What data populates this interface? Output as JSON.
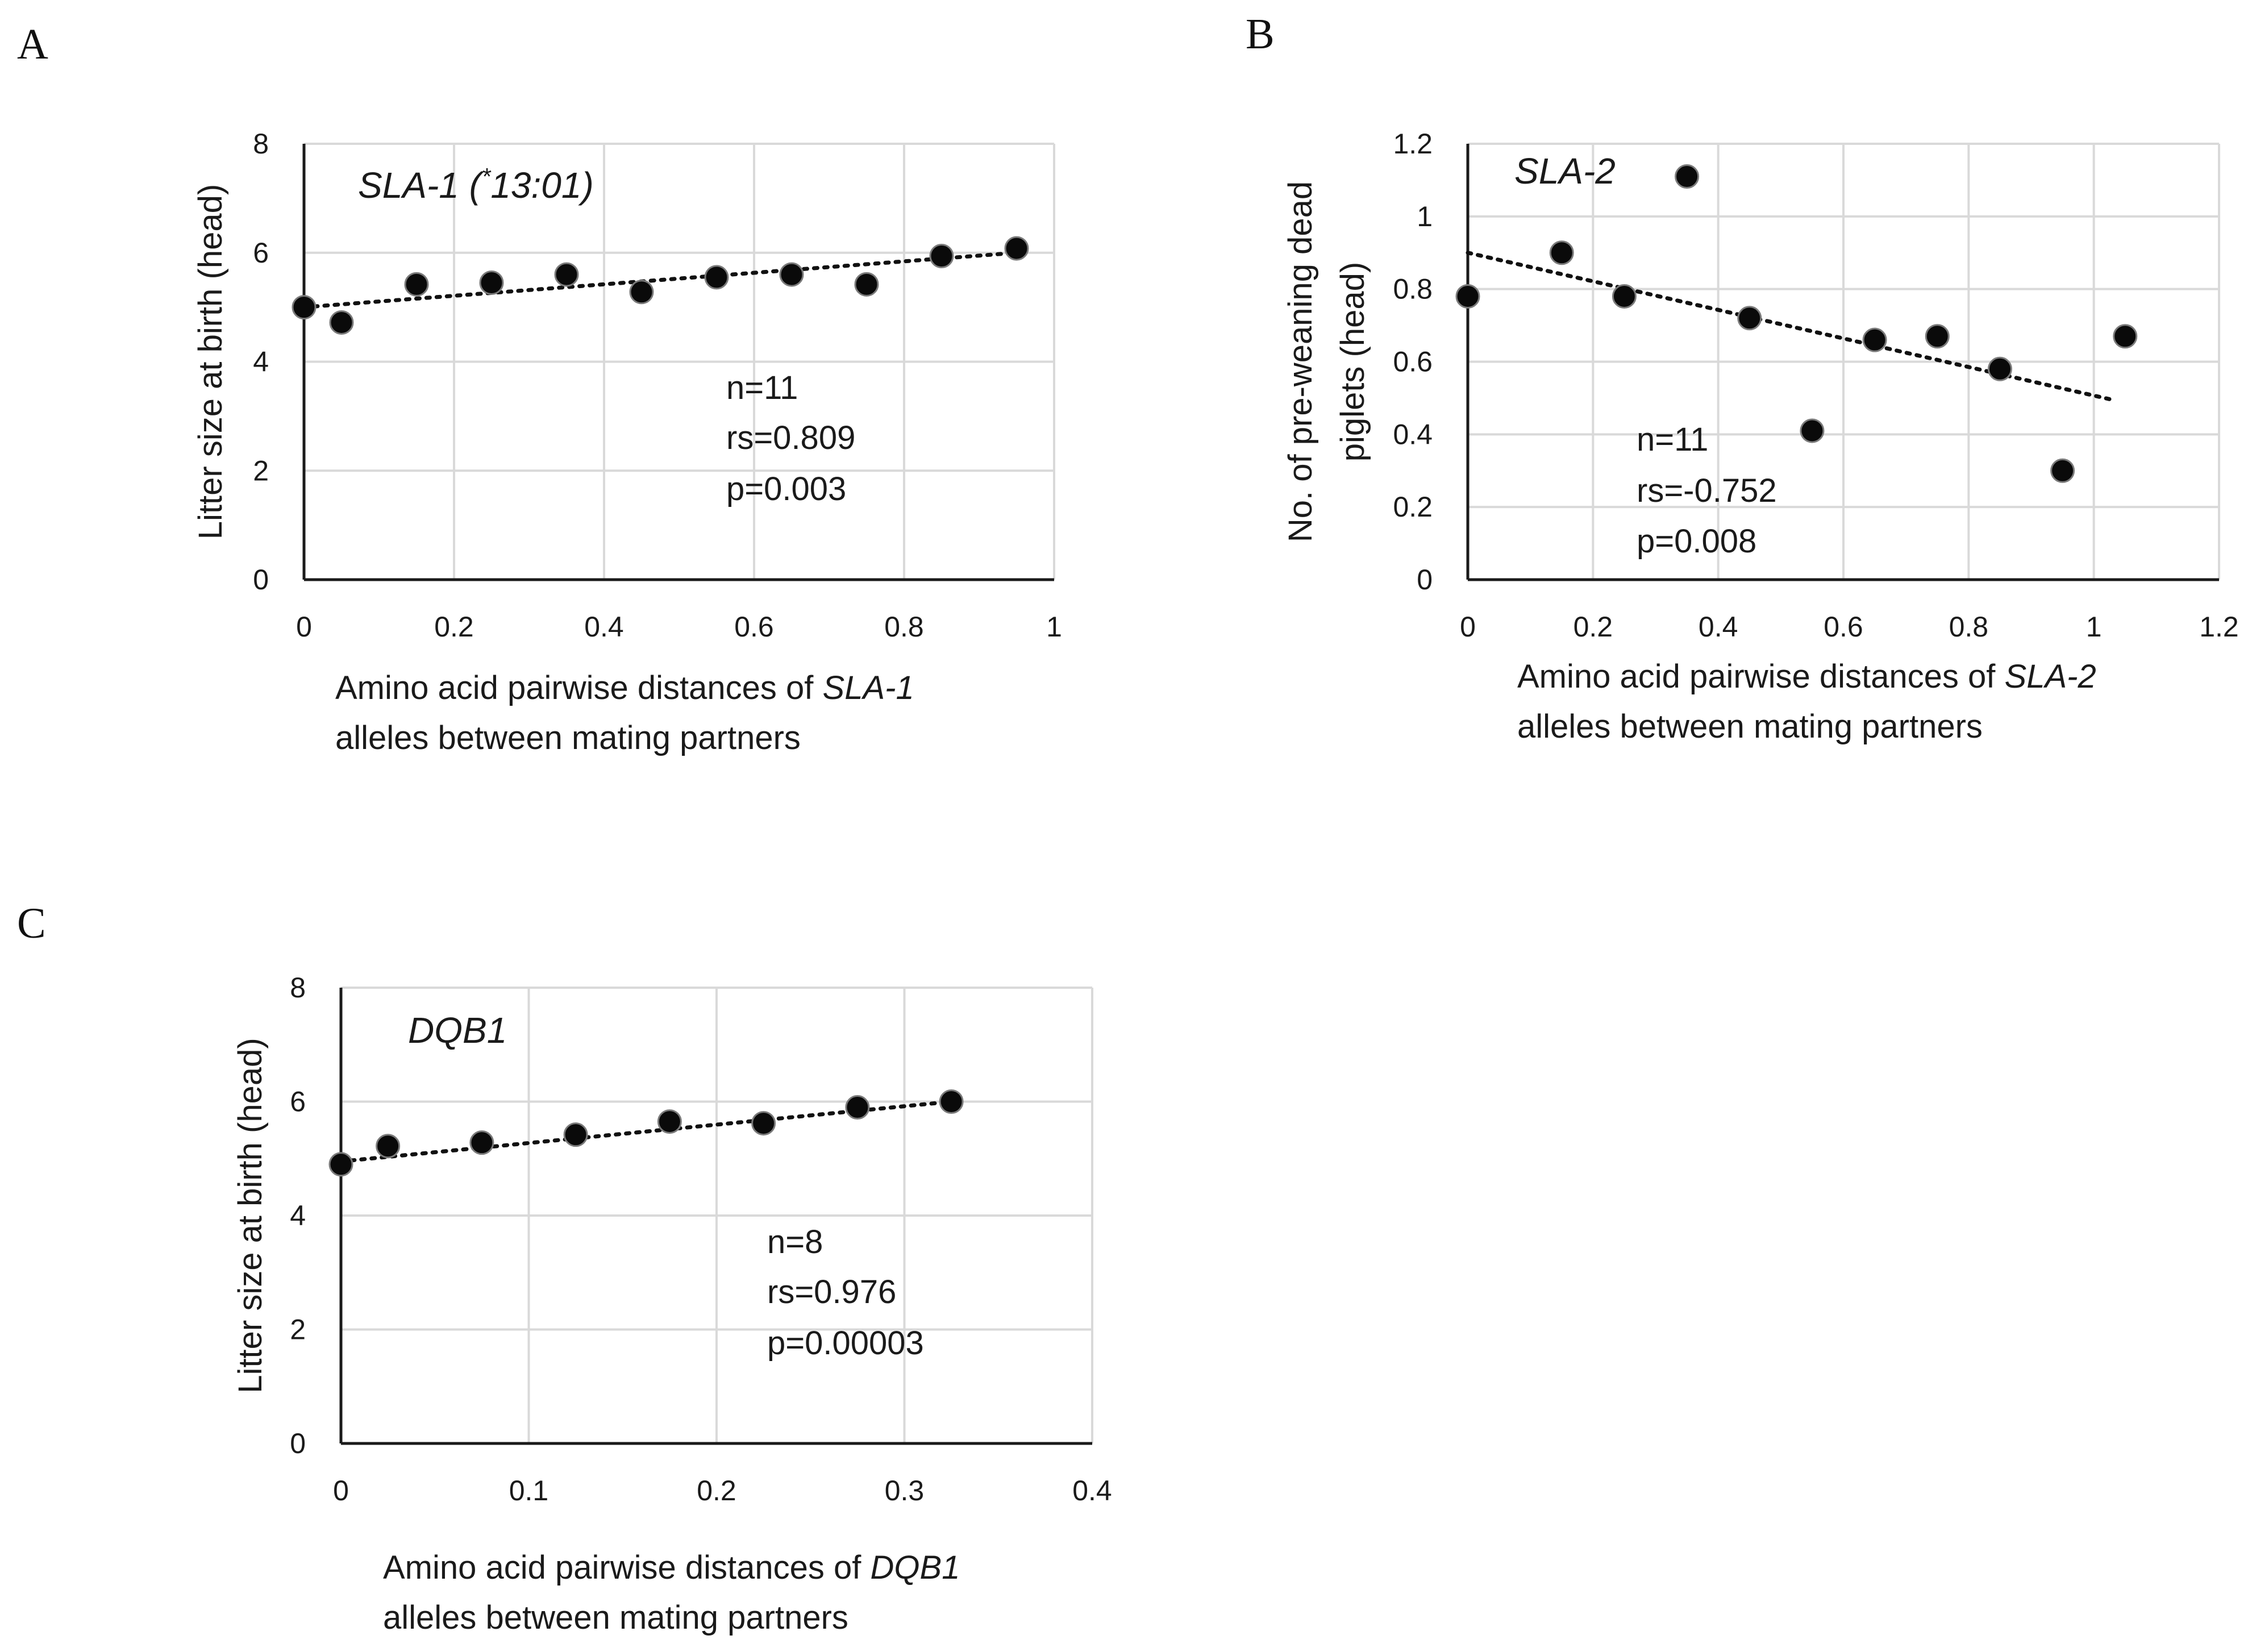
{
  "chart_data": [
    {
      "type": "scatter",
      "panel": "A",
      "title": "SLA-1 (*13:01)",
      "title_parts": [
        "SLA-1 (",
        "*",
        "13:01)"
      ],
      "xlabel_lines": [
        [
          "Amino acid pairwise distances of ",
          "SLA-1"
        ],
        [
          "alleles between mating partners"
        ]
      ],
      "ylabel_lines": [
        "Litter size at birth (head)"
      ],
      "xlim": [
        0,
        1
      ],
      "ylim": [
        0,
        8
      ],
      "xticks": [
        0,
        0.2,
        0.4,
        0.6,
        0.8,
        1
      ],
      "yticks": [
        0,
        2,
        4,
        6,
        8
      ],
      "x": [
        0,
        0.05,
        0.15,
        0.25,
        0.35,
        0.45,
        0.55,
        0.65,
        0.75,
        0.85,
        0.95
      ],
      "y": [
        5.0,
        4.72,
        5.42,
        5.45,
        5.6,
        5.28,
        5.55,
        5.6,
        5.42,
        5.94,
        6.08
      ],
      "trendline": {
        "x": [
          0,
          0.95
        ],
        "y": [
          5.0,
          6.0
        ],
        "style": "dotted"
      },
      "annotations": [
        "n=11",
        "rs=0.809",
        "p=0.003"
      ],
      "grid": true
    },
    {
      "type": "scatter",
      "panel": "B",
      "title": "SLA-2",
      "title_parts": [
        "SLA-2"
      ],
      "xlabel_lines": [
        [
          "Amino acid pairwise distances of ",
          "SLA-2"
        ],
        [
          "alleles between mating partners"
        ]
      ],
      "ylabel_lines": [
        "No. of pre-weaning dead",
        "piglets (head)"
      ],
      "xlim": [
        0,
        1.2
      ],
      "ylim": [
        0,
        1.2
      ],
      "xticks": [
        0,
        0.2,
        0.4,
        0.6,
        0.8,
        1,
        1.2
      ],
      "yticks": [
        0,
        0.2,
        0.4,
        0.6,
        0.8,
        1,
        1.2
      ],
      "x": [
        0,
        0.15,
        0.25,
        0.35,
        0.45,
        0.55,
        0.65,
        0.75,
        0.85,
        0.95,
        1.05
      ],
      "y": [
        0.78,
        0.9,
        0.78,
        1.11,
        0.72,
        0.41,
        0.66,
        0.67,
        0.58,
        0.3,
        0.67
      ],
      "trendline": {
        "x": [
          0,
          1.03
        ],
        "y": [
          0.9,
          0.495
        ],
        "style": "dotted"
      },
      "annotations": [
        "n=11",
        "rs=-0.752",
        "p=0.008"
      ],
      "grid": true
    },
    {
      "type": "scatter",
      "panel": "C",
      "title": "DQB1",
      "title_parts": [
        "DQB1"
      ],
      "xlabel_lines": [
        [
          "Amino acid pairwise distances of ",
          "DQB1"
        ],
        [
          "alleles between mating partners"
        ]
      ],
      "ylabel_lines": [
        "Litter size at birth (head)"
      ],
      "xlim": [
        0,
        0.4
      ],
      "ylim": [
        0,
        8
      ],
      "xticks": [
        0,
        0.1,
        0.2,
        0.3,
        0.4
      ],
      "yticks": [
        0,
        2,
        4,
        6,
        8
      ],
      "x": [
        0,
        0.025,
        0.075,
        0.125,
        0.175,
        0.225,
        0.275,
        0.325
      ],
      "y": [
        4.9,
        5.22,
        5.28,
        5.42,
        5.65,
        5.62,
        5.9,
        6.0
      ],
      "trendline": {
        "x": [
          0,
          0.325
        ],
        "y": [
          4.95,
          6.0
        ],
        "style": "dotted"
      },
      "annotations": [
        "n=8",
        "rs=0.976",
        "p=0.00003"
      ],
      "grid": true
    }
  ]
}
